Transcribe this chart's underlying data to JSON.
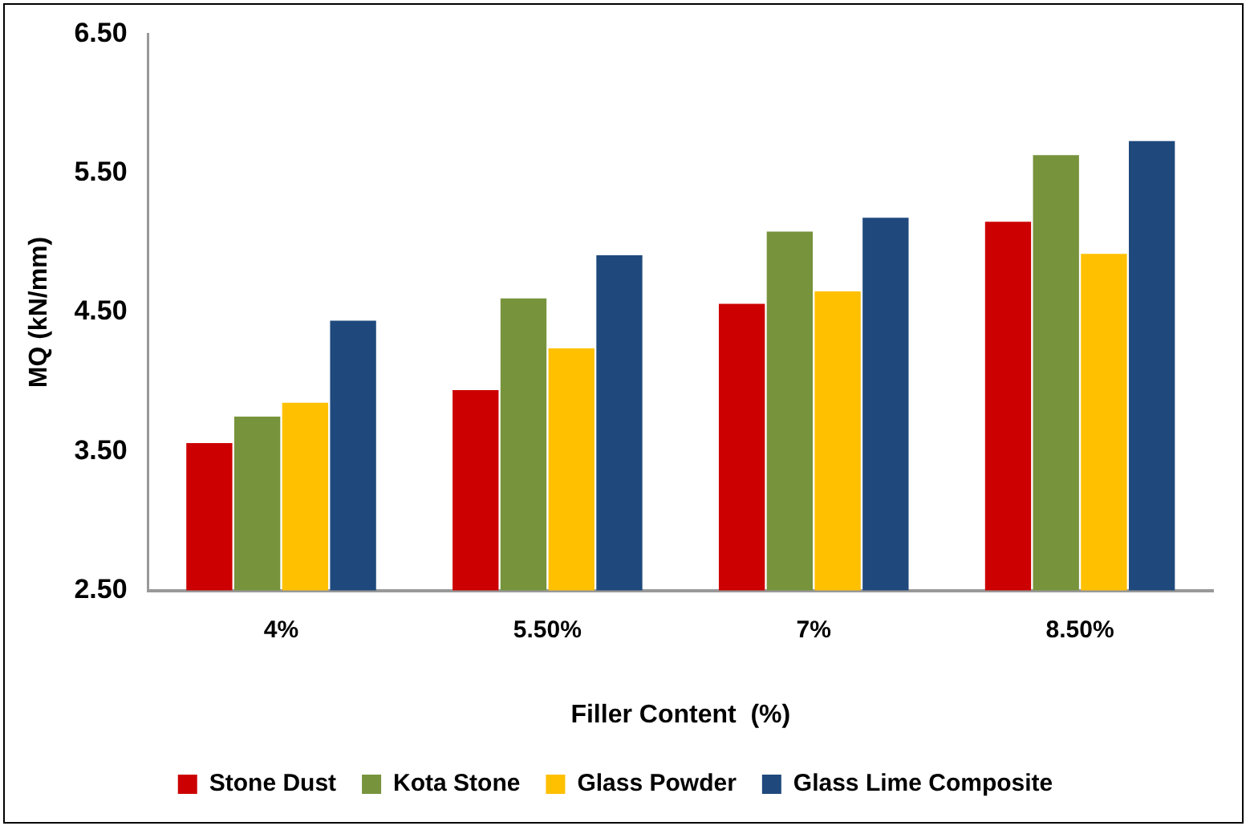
{
  "chart_data": {
    "type": "bar",
    "xlabel": "Filler Content  (%)",
    "ylabel": "MQ (kN/mm)",
    "categories": [
      "4%",
      "5.50%",
      "7%",
      "8.50%"
    ],
    "series": [
      {
        "name": "Stone Dust",
        "color": "#cc0000",
        "values": [
          3.56,
          3.94,
          4.56,
          5.15
        ]
      },
      {
        "name": "Kota Stone",
        "color": "#77933c",
        "values": [
          3.75,
          4.6,
          5.08,
          5.63
        ]
      },
      {
        "name": "Glass Powder",
        "color": "#ffc000",
        "values": [
          3.85,
          4.24,
          4.65,
          4.92
        ]
      },
      {
        "name": "Glass Lime Composite",
        "color": "#1f497d",
        "values": [
          4.44,
          4.91,
          5.18,
          5.73
        ]
      }
    ],
    "ylim": [
      2.5,
      6.5
    ],
    "yticks": [
      {
        "value": 2.5,
        "label": "2.50"
      },
      {
        "value": 3.5,
        "label": "3.50"
      },
      {
        "value": 4.5,
        "label": "4.50"
      },
      {
        "value": 5.5,
        "label": "5.50"
      },
      {
        "value": 6.5,
        "label": "6.50"
      }
    ],
    "grid": false,
    "legend": "bottom"
  }
}
